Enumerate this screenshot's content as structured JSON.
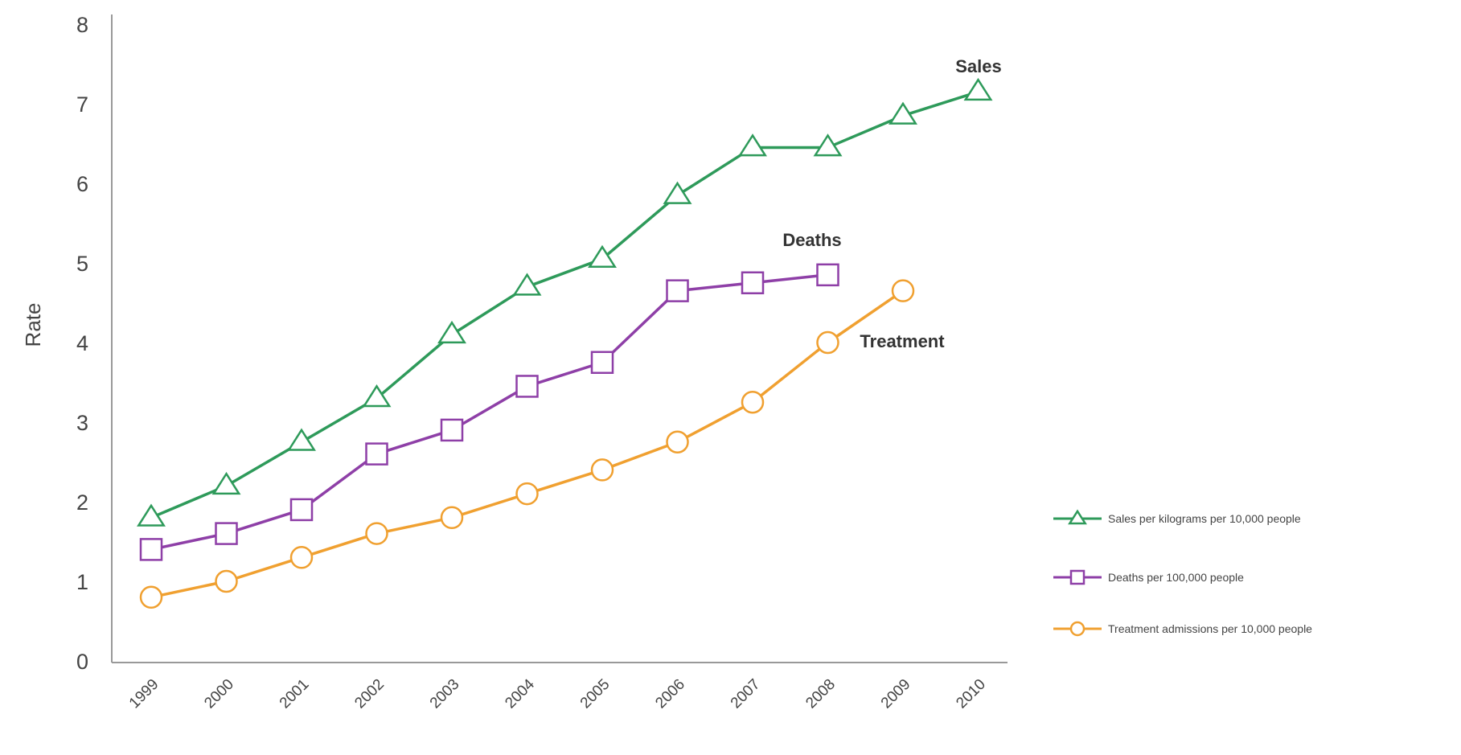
{
  "chart_data": {
    "type": "line",
    "title": "",
    "xlabel": "",
    "ylabel": "Rate",
    "ylim": [
      0,
      8
    ],
    "yticks": [
      0,
      1,
      2,
      3,
      4,
      5,
      6,
      7,
      8
    ],
    "categories": [
      "1999",
      "2000",
      "2001",
      "2002",
      "2003",
      "2004",
      "2005",
      "2006",
      "2007",
      "2008",
      "2009",
      "2010"
    ],
    "grid": false,
    "legend_position": "right",
    "series": [
      {
        "name": "Sales per kilograms per 10,000 people",
        "label": "Sales",
        "color": "#2e9a5a",
        "marker": "triangle",
        "values": [
          1.8,
          2.2,
          2.75,
          3.3,
          4.1,
          4.7,
          5.05,
          5.85,
          6.45,
          6.45,
          6.85,
          7.15
        ]
      },
      {
        "name": "Deaths per 100,000 people",
        "label": "Deaths",
        "color": "#8e3fa7",
        "marker": "square",
        "values": [
          1.4,
          1.6,
          1.9,
          2.6,
          2.9,
          3.45,
          3.75,
          4.65,
          4.75,
          4.85,
          null,
          null
        ]
      },
      {
        "name": "Treatment admissions per 10,000 people",
        "label": "Treatment",
        "color": "#f0a030",
        "marker": "circle",
        "values": [
          0.8,
          1.0,
          1.3,
          1.6,
          1.8,
          2.1,
          2.4,
          2.75,
          3.25,
          4.0,
          4.65,
          null
        ]
      }
    ]
  }
}
